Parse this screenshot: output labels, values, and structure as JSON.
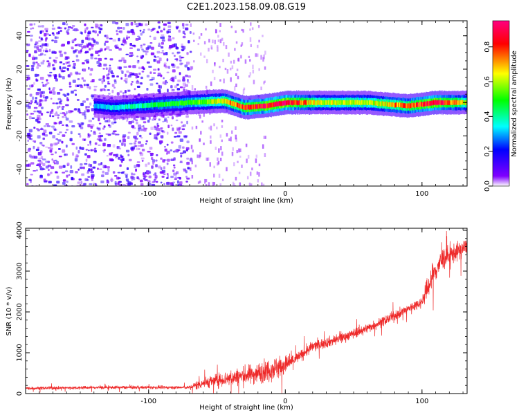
{
  "title": "C2E1.2023.158.09.08.G19",
  "chart_data": [
    {
      "type": "heatmap",
      "xlabel": "Height of straight line (km)",
      "ylabel": "Frequency (Hz)",
      "xlim": [
        -190,
        133
      ],
      "ylim": [
        -50,
        49
      ],
      "x_ticks": [
        -100,
        0,
        100
      ],
      "y_ticks": [
        -40,
        -20,
        0,
        20,
        40
      ],
      "colorbar": {
        "label": "Normalized spectral amplitude",
        "range": [
          0.0,
          0.95
        ],
        "ticks": [
          "0.0",
          "0.2",
          "0.4",
          "0.6",
          "0.8"
        ],
        "colormap": [
          "#ffffff",
          "#8000ff",
          "#0000ff",
          "#00ffff",
          "#00ff00",
          "#ffff00",
          "#ff0000",
          "#ff0080"
        ]
      },
      "noise_region": {
        "x_from": -190,
        "x_to": -70,
        "level": 0.1
      },
      "ridge": [
        {
          "x": -140,
          "freq": -2,
          "amp": 0.3
        },
        {
          "x": -125,
          "freq": -3,
          "amp": 0.35
        },
        {
          "x": -70,
          "freq": 0,
          "amp": 0.5
        },
        {
          "x": -45,
          "freq": 1,
          "amp": 0.65
        },
        {
          "x": -30,
          "freq": -3,
          "amp": 0.8
        },
        {
          "x": -15,
          "freq": -2,
          "amp": 0.85
        },
        {
          "x": 0,
          "freq": 0,
          "amp": 0.9
        },
        {
          "x": 25,
          "freq": 0,
          "amp": 0.6
        },
        {
          "x": 60,
          "freq": 0,
          "amp": 0.6
        },
        {
          "x": 90,
          "freq": -2,
          "amp": 0.75
        },
        {
          "x": 110,
          "freq": 0,
          "amp": 0.9
        },
        {
          "x": 133,
          "freq": 0,
          "amp": 0.6
        }
      ],
      "grid": false,
      "legend": "colorbar-right"
    },
    {
      "type": "line",
      "xlabel": "Height of straight line (km)",
      "ylabel": "SNR (10 * v/v)",
      "xlim": [
        -190,
        133
      ],
      "ylim": [
        0,
        4050
      ],
      "x_ticks": [
        -100,
        0,
        100
      ],
      "y_ticks": [
        0,
        1000,
        2000,
        3000,
        4000
      ],
      "color": "#ee2a2a",
      "trend_points": [
        {
          "x": -190,
          "y": 130
        },
        {
          "x": -130,
          "y": 150
        },
        {
          "x": -70,
          "y": 150
        },
        {
          "x": -60,
          "y": 260
        },
        {
          "x": -40,
          "y": 380
        },
        {
          "x": -20,
          "y": 500
        },
        {
          "x": 0,
          "y": 700
        },
        {
          "x": 10,
          "y": 900
        },
        {
          "x": 20,
          "y": 1150
        },
        {
          "x": 40,
          "y": 1350
        },
        {
          "x": 60,
          "y": 1600
        },
        {
          "x": 80,
          "y": 1900
        },
        {
          "x": 100,
          "y": 2250
        },
        {
          "x": 108,
          "y": 2900
        },
        {
          "x": 115,
          "y": 3300
        },
        {
          "x": 133,
          "y": 3600
        }
      ],
      "noise_points": [
        {
          "x": -190,
          "y": 60
        },
        {
          "x": -70,
          "y": 60
        },
        {
          "x": -65,
          "y": 180
        },
        {
          "x": -30,
          "y": 350
        },
        {
          "x": -5,
          "y": 450
        },
        {
          "x": 10,
          "y": 220
        },
        {
          "x": 60,
          "y": 180
        },
        {
          "x": 100,
          "y": 200
        },
        {
          "x": 105,
          "y": 500
        },
        {
          "x": 133,
          "y": 300
        }
      ],
      "grid": false
    }
  ]
}
